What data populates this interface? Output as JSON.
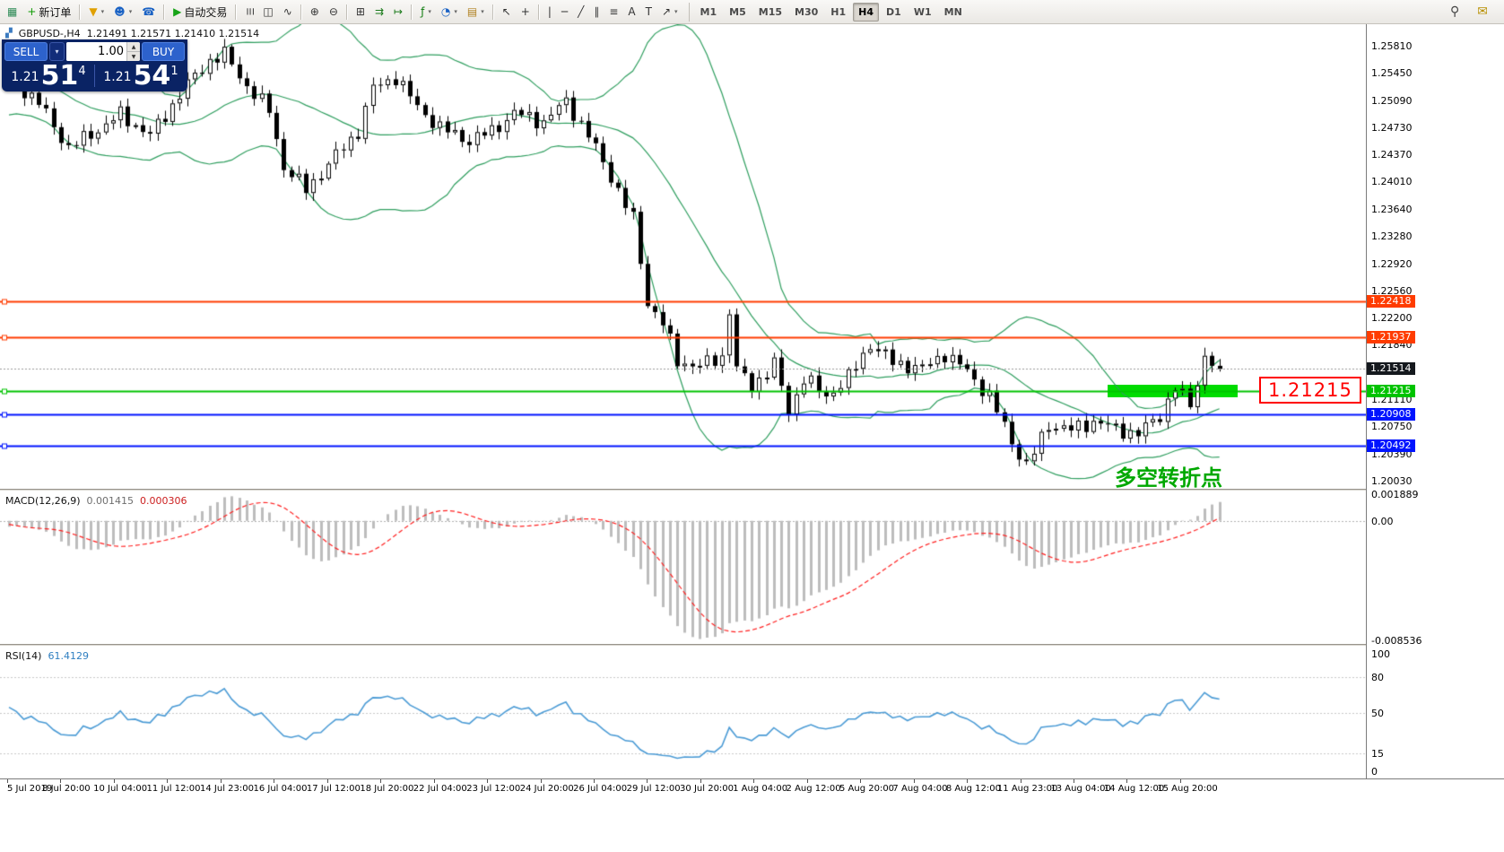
{
  "toolbar": {
    "caret_glyph": "▾",
    "groups": [
      [
        {
          "name": "app-button",
          "icon_name": "app-logo-icon",
          "glyph": "▦",
          "color": "#2e8b57",
          "interactable": false
        },
        {
          "name": "new-order-button",
          "icon_name": "new-order-icon",
          "glyph": "+",
          "color": "#0c9a00",
          "label": "新订单"
        }
      ],
      [
        {
          "name": "new-chart-button",
          "icon_name": "new-chart-icon",
          "glyph": "▼",
          "color": "#e0a000",
          "caret": true
        },
        {
          "name": "profiles-button",
          "icon_name": "profiles-icon",
          "glyph": "☻",
          "color": "#1a62c4",
          "caret": true
        },
        {
          "name": "market-watch-button",
          "icon_name": "market-watch-icon",
          "glyph": "☎",
          "color": "#1a62c4"
        }
      ],
      [
        {
          "name": "autotrading-button",
          "icon_name": "autotrading-play-icon",
          "glyph": "▶",
          "color": "#17a317",
          "label": "自动交易"
        }
      ],
      [
        {
          "name": "bar-chart-button",
          "icon_name": "bar-chart-icon",
          "glyph": "☰",
          "cls": "rot"
        },
        {
          "name": "candlestick-chart-button",
          "icon_name": "candlestick-icon",
          "glyph": "◫"
        },
        {
          "name": "line-chart-button",
          "icon_name": "line-chart-icon",
          "glyph": "∿"
        }
      ],
      [
        {
          "name": "zoom-in-button",
          "icon_name": "zoom-in-icon",
          "glyph": "⊕"
        },
        {
          "name": "zoom-out-button",
          "icon_name": "zoom-out-icon",
          "glyph": "⊖"
        }
      ],
      [
        {
          "name": "tile-windows-button",
          "icon_name": "tile-windows-icon",
          "glyph": "⊞"
        },
        {
          "name": "auto-scroll-button",
          "icon_name": "auto-scroll-icon",
          "glyph": "⇉",
          "color": "#1a7a1a"
        },
        {
          "name": "chart-shift-button",
          "icon_name": "chart-shift-icon",
          "glyph": "↦",
          "color": "#1a7a1a"
        }
      ],
      [
        {
          "name": "indicators-button",
          "icon_name": "indicators-icon",
          "glyph": "ƒ",
          "color": "#0c7a0c",
          "caret": true
        },
        {
          "name": "periods-button",
          "icon_name": "periods-clock-icon",
          "glyph": "◔",
          "color": "#1a62c4",
          "caret": true
        },
        {
          "name": "templates-button",
          "icon_name": "templates-icon",
          "glyph": "▤",
          "color": "#b08020",
          "caret": true
        }
      ],
      [
        {
          "name": "cursor-button",
          "icon_name": "cursor-icon",
          "glyph": "↖"
        },
        {
          "name": "crosshair-button",
          "icon_name": "crosshair-icon",
          "glyph": "+"
        }
      ],
      [
        {
          "name": "vertical-line-button",
          "icon_name": "vertical-line-icon",
          "glyph": "|"
        },
        {
          "name": "horizontal-line-button",
          "icon_name": "horizontal-line-icon",
          "glyph": "─"
        },
        {
          "name": "trendline-button",
          "icon_name": "trendline-icon",
          "glyph": "╱"
        },
        {
          "name": "equidistant-channel-button",
          "icon_name": "channel-icon",
          "glyph": "∥"
        },
        {
          "name": "fibonacci-button",
          "icon_name": "fibonacci-icon",
          "glyph": "≡"
        },
        {
          "name": "text-button",
          "icon_name": "text-icon",
          "glyph": "A"
        },
        {
          "name": "text-label-button",
          "icon_name": "text-label-icon",
          "glyph": "T"
        },
        {
          "name": "arrows-button",
          "icon_name": "arrows-icon",
          "glyph": "↗",
          "caret": true
        }
      ]
    ],
    "timeframes": [
      "M1",
      "M5",
      "M15",
      "M30",
      "H1",
      "H4",
      "D1",
      "W1",
      "MN"
    ],
    "active_timeframe": "H4",
    "right_items": [
      {
        "name": "search-button",
        "icon_name": "search-icon",
        "glyph": "⚲"
      },
      {
        "name": "community-button",
        "icon_name": "community-icon",
        "glyph": "✉",
        "color": "#b89000"
      }
    ]
  },
  "header": {
    "icon_glyph": "▞",
    "symbol": "GBPUSD-,H4",
    "ohlc": "1.21491 1.21571 1.21410 1.21514"
  },
  "trade_panel": {
    "sell_label": "SELL",
    "buy_label": "BUY",
    "volume": "1.00",
    "caret_glyph": "▾",
    "spin_up_glyph": "▲",
    "spin_down_glyph": "▼",
    "sell_price": {
      "prefix": "1.21",
      "big": "51",
      "sup": "4"
    },
    "buy_price": {
      "prefix": "1.21",
      "big": "54",
      "sup": "1"
    }
  },
  "indicators": {
    "macd": {
      "title": "MACD(12,26,9)",
      "value_main": "0.001415",
      "value_signal": "0.000306",
      "axis_labels": [
        "0.001889",
        "0.00",
        "-0.008536"
      ]
    },
    "rsi": {
      "title": "RSI(14)",
      "value": "61.4129",
      "axis_labels": [
        "100",
        "80",
        "50",
        "15",
        "0"
      ],
      "level_lines": [
        80,
        50,
        15
      ]
    }
  },
  "price_axis": {
    "scale_labels": [
      "1.25810",
      "1.25450",
      "1.25090",
      "1.24730",
      "1.24370",
      "1.24010",
      "1.23640",
      "1.23280",
      "1.22920",
      "1.22560",
      "1.22200",
      "1.21840",
      "1.21110",
      "1.20750",
      "1.20390",
      "1.20030"
    ],
    "current": {
      "text": "1.21514",
      "color": "#15191e"
    }
  },
  "hlines": [
    {
      "text": "1.22418",
      "value": 1.22418,
      "color": "#ff3c00",
      "width": 2
    },
    {
      "text": "1.21937",
      "value": 1.21937,
      "color": "#ff3c00",
      "width": 2
    },
    {
      "text": "1.21215",
      "value": 1.21215,
      "color": "#00c300",
      "width": 2
    },
    {
      "text": "1.20908",
      "value": 1.20908,
      "color": "#0014ff",
      "width": 2
    },
    {
      "text": "1.20492",
      "value": 1.20492,
      "color": "#0014ff",
      "width": 2
    }
  ],
  "time_axis": {
    "labels": [
      "5 Jul 2019",
      "8 Jul 20:00",
      "10 Jul 04:00",
      "11 Jul 12:00",
      "14 Jul 23:00",
      "16 Jul 04:00",
      "17 Jul 12:00",
      "18 Jul 20:00",
      "22 Jul 04:00",
      "23 Jul 12:00",
      "24 Jul 20:00",
      "26 Jul 04:00",
      "29 Jul 12:00",
      "30 Jul 20:00",
      "1 Aug 04:00",
      "2 Aug 12:00",
      "5 Aug 20:00",
      "7 Aug 04:00",
      "8 Aug 12:00",
      "11 Aug 23:00",
      "13 Aug 04:00",
      "14 Aug 12:00",
      "15 Aug 20:00"
    ]
  },
  "annotations": {
    "zone": {
      "price": 1.21215,
      "from_index": 148,
      "to_index": 165.5,
      "color": "#00dc00"
    },
    "callout": {
      "text": "1.21215",
      "color": "#ff0000"
    },
    "cn_note": {
      "text": "多空转折点",
      "color": "#00a800"
    }
  },
  "chart_data": {
    "type": "candlestick",
    "symbol": "GBPUSD-",
    "timeframe": "H4",
    "indicators": {
      "bollinger": {
        "period": 20,
        "deviation": 2
      },
      "macd": {
        "fast": 12,
        "slow": 26,
        "signal": 9
      },
      "rsi": {
        "period": 14
      }
    },
    "price_scale": {
      "max": 1.261,
      "min": 1.1992
    },
    "macd_scale": {
      "max": 0.0021,
      "min": -0.0088
    },
    "rsi_scale": {
      "max": 100,
      "min": 0
    },
    "candle_count": 164,
    "warmup": 40,
    "colors": {
      "bollinger": "#2f9e5f",
      "candle_up": "#ffffff",
      "candle_down": "#000000",
      "candle_outline": "#000000",
      "macd_histogram": "#bdbdbd",
      "macd_signal": "#ff2020",
      "rsi_line": "#4b9bd5",
      "level_line": "#c8c8c8",
      "current_price_line": "#9a9a9a"
    },
    "gen": {
      "noise1": 0.0007,
      "noise2": 0.0005,
      "wick": 0.0008,
      "warmup_amp": 0.0035
    },
    "anchors": [
      [
        0,
        1.254
      ],
      [
        4,
        1.2505
      ],
      [
        8,
        1.2445
      ],
      [
        12,
        1.247
      ],
      [
        15,
        1.249
      ],
      [
        19,
        1.2462
      ],
      [
        24,
        1.253
      ],
      [
        27,
        1.2562
      ],
      [
        29,
        1.257
      ],
      [
        32,
        1.2528
      ],
      [
        35,
        1.2495
      ],
      [
        37,
        1.242
      ],
      [
        40,
        1.239
      ],
      [
        44,
        1.2435
      ],
      [
        47,
        1.2468
      ],
      [
        49,
        1.2525
      ],
      [
        52,
        1.254
      ],
      [
        55,
        1.25
      ],
      [
        58,
        1.2472
      ],
      [
        62,
        1.2455
      ],
      [
        65,
        1.2468
      ],
      [
        68,
        1.2492
      ],
      [
        72,
        1.248
      ],
      [
        75,
        1.2508
      ],
      [
        78,
        1.2462
      ],
      [
        81,
        1.2408
      ],
      [
        84,
        1.235
      ],
      [
        86,
        1.224
      ],
      [
        88,
        1.2212
      ],
      [
        90,
        1.2162
      ],
      [
        93,
        1.2155
      ],
      [
        96,
        1.2168
      ],
      [
        97,
        1.223
      ],
      [
        98,
        1.215
      ],
      [
        100,
        1.2128
      ],
      [
        103,
        1.2158
      ],
      [
        105,
        1.2095
      ],
      [
        107,
        1.214
      ],
      [
        110,
        1.2115
      ],
      [
        113,
        1.214
      ],
      [
        116,
        1.2185
      ],
      [
        119,
        1.216
      ],
      [
        123,
        1.2152
      ],
      [
        126,
        1.2172
      ],
      [
        129,
        1.2148
      ],
      [
        132,
        1.2115
      ],
      [
        135,
        1.2055
      ],
      [
        137,
        1.2022
      ],
      [
        140,
        1.2078
      ],
      [
        143,
        1.207
      ],
      [
        146,
        1.2082
      ],
      [
        149,
        1.2072
      ],
      [
        152,
        1.2065
      ],
      [
        155,
        1.209
      ],
      [
        157,
        1.2128
      ],
      [
        159,
        1.2102
      ],
      [
        161,
        1.2168
      ],
      [
        163,
        1.21514
      ]
    ]
  }
}
